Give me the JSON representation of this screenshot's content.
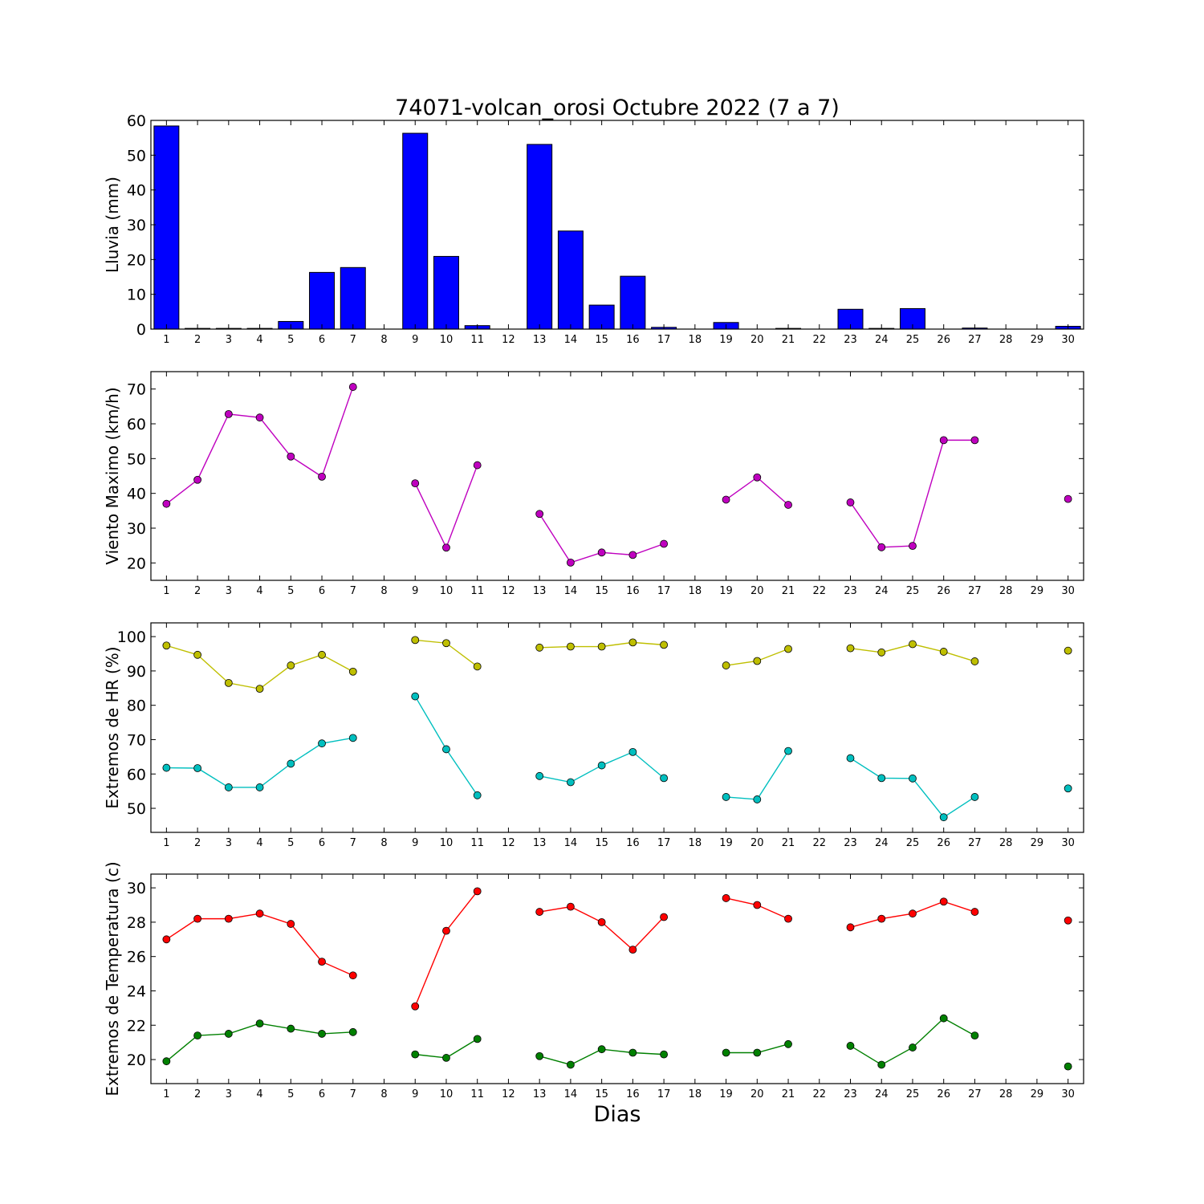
{
  "figure": {
    "title": "74071-volcan_orosi Octubre 2022  (7 a 7)",
    "xlabel": "Dias"
  },
  "chart_data": [
    {
      "type": "bar",
      "ylabel": "Lluvia (mm)",
      "ylim": [
        0,
        60
      ],
      "yticks": [
        0,
        10,
        20,
        30,
        40,
        50,
        60
      ],
      "xticks": [
        1,
        2,
        3,
        4,
        5,
        6,
        7,
        8,
        9,
        10,
        11,
        12,
        13,
        14,
        15,
        16,
        17,
        18,
        19,
        20,
        21,
        22,
        23,
        24,
        25,
        26,
        27,
        28,
        29,
        30
      ],
      "xlim": [
        0.5,
        30.5
      ],
      "color": "#0000ff",
      "series": [
        {
          "x": [
            1,
            2,
            3,
            4,
            5,
            6,
            7,
            9,
            10,
            11,
            13,
            14,
            15,
            16,
            17,
            19,
            21,
            23,
            24,
            25,
            27,
            30
          ],
          "values": [
            58.4,
            0.2,
            0.2,
            0.2,
            2.2,
            16.3,
            17.7,
            56.3,
            20.9,
            1.0,
            53.1,
            28.2,
            6.9,
            15.2,
            0.5,
            1.9,
            0.2,
            5.7,
            0.2,
            5.9,
            0.3,
            0.8
          ]
        }
      ]
    },
    {
      "type": "line",
      "ylabel": "Viento Maximo (km/h)",
      "ylim": [
        15,
        75
      ],
      "yticks": [
        20,
        30,
        40,
        50,
        60,
        70
      ],
      "xticks": [
        1,
        2,
        3,
        4,
        5,
        6,
        7,
        8,
        9,
        10,
        11,
        12,
        13,
        14,
        15,
        16,
        17,
        18,
        19,
        20,
        21,
        22,
        23,
        24,
        25,
        26,
        27,
        28,
        29,
        30
      ],
      "xlim": [
        0.5,
        30.5
      ],
      "series": [
        {
          "color": "#bf00bf",
          "values": [
            37.0,
            43.9,
            62.8,
            61.8,
            50.6,
            44.8,
            70.6,
            null,
            42.9,
            24.4,
            48.1,
            null,
            34.1,
            20.1,
            23.0,
            22.3,
            25.5,
            null,
            38.2,
            44.6,
            36.7,
            null,
            37.4,
            24.5,
            24.9,
            55.3,
            55.3,
            null,
            null,
            38.4
          ]
        }
      ]
    },
    {
      "type": "line",
      "ylabel": "Extremos de HR (%)",
      "ylim": [
        43,
        104
      ],
      "yticks": [
        50,
        60,
        70,
        80,
        90,
        100
      ],
      "xticks": [
        1,
        2,
        3,
        4,
        5,
        6,
        7,
        8,
        9,
        10,
        11,
        12,
        13,
        14,
        15,
        16,
        17,
        18,
        19,
        20,
        21,
        22,
        23,
        24,
        25,
        26,
        27,
        28,
        29,
        30
      ],
      "xlim": [
        0.5,
        30.5
      ],
      "series": [
        {
          "color": "#bfbf00",
          "values": [
            97.4,
            94.7,
            86.5,
            84.8,
            91.6,
            94.7,
            89.8,
            null,
            99.0,
            98.1,
            91.3,
            null,
            96.8,
            97.1,
            97.1,
            98.3,
            97.6,
            null,
            91.6,
            92.9,
            96.4,
            null,
            96.6,
            95.4,
            97.8,
            95.6,
            92.8,
            null,
            null,
            95.9
          ]
        },
        {
          "color": "#00bfbf",
          "values": [
            61.8,
            61.7,
            56.1,
            56.1,
            63.0,
            68.9,
            70.5,
            null,
            82.6,
            67.2,
            53.8,
            null,
            59.4,
            57.6,
            62.5,
            66.4,
            58.8,
            null,
            53.3,
            52.6,
            66.7,
            null,
            64.6,
            58.8,
            58.7,
            47.4,
            53.3,
            null,
            null,
            55.8
          ]
        }
      ]
    },
    {
      "type": "line",
      "ylabel": "Extremos de Temperatura (c)",
      "ylim": [
        18.6,
        30.8
      ],
      "yticks": [
        20,
        22,
        24,
        26,
        28,
        30
      ],
      "xticks": [
        1,
        2,
        3,
        4,
        5,
        6,
        7,
        8,
        9,
        10,
        11,
        12,
        13,
        14,
        15,
        16,
        17,
        18,
        19,
        20,
        21,
        22,
        23,
        24,
        25,
        26,
        27,
        28,
        29,
        30
      ],
      "xlim": [
        0.5,
        30.5
      ],
      "series": [
        {
          "color": "#ff0000",
          "values": [
            27.0,
            28.2,
            28.2,
            28.5,
            27.9,
            25.7,
            24.9,
            null,
            23.1,
            27.5,
            29.8,
            null,
            28.6,
            28.9,
            28.0,
            26.4,
            28.3,
            null,
            29.4,
            29.0,
            28.2,
            null,
            27.7,
            28.2,
            28.5,
            29.2,
            28.6,
            null,
            null,
            28.1
          ]
        },
        {
          "color": "#008000",
          "values": [
            19.9,
            21.4,
            21.5,
            22.1,
            21.8,
            21.5,
            21.6,
            null,
            20.3,
            20.1,
            21.2,
            null,
            20.2,
            19.7,
            20.6,
            20.4,
            20.3,
            null,
            20.4,
            20.4,
            20.9,
            null,
            20.8,
            19.7,
            20.7,
            22.4,
            21.4,
            null,
            null,
            19.6
          ]
        }
      ]
    }
  ]
}
